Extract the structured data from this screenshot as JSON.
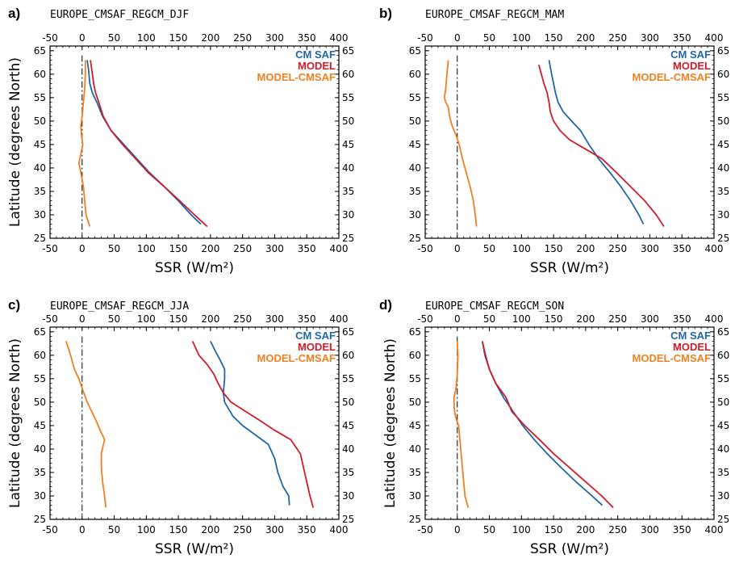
{
  "chart_data": [
    {
      "type": "line",
      "panel_label": "a)",
      "title": "EUROPE_CMSAF_REGCM_DJF",
      "xlabel": "SSR (W/m²)",
      "ylabel": "Latitude (degrees North)",
      "xlim": [
        -50,
        400
      ],
      "ylim": [
        25,
        66
      ],
      "xticks": [
        -50,
        0,
        50,
        100,
        150,
        200,
        250,
        300,
        350,
        400
      ],
      "yticks": [
        25,
        30,
        35,
        40,
        45,
        50,
        55,
        60,
        65
      ],
      "grid": false,
      "legend_position": "top-right",
      "series": [
        {
          "name": "CM SAF",
          "color": "#1f66a8",
          "x": [
            185,
            170,
            150,
            128,
            105,
            85,
            65,
            45,
            32,
            23,
            16,
            12,
            10,
            8
          ],
          "y": [
            28,
            30,
            33,
            36,
            39,
            42,
            45,
            48,
            51,
            54,
            56,
            58,
            61,
            63
          ]
        },
        {
          "name": "MODEL",
          "color": "#d01c2a",
          "x": [
            195,
            175,
            152,
            128,
            103,
            83,
            63,
            45,
            33,
            26,
            21,
            18,
            15,
            13
          ],
          "y": [
            27.5,
            30,
            33,
            36,
            39,
            42,
            45,
            48,
            51,
            54,
            56,
            58,
            61,
            63
          ]
        },
        {
          "name": "MODEL-CMSAF",
          "color": "#f07f20",
          "x": [
            12,
            6,
            4,
            2,
            -2,
            -5,
            -2,
            1,
            -1,
            -2,
            0,
            2,
            4,
            5,
            5
          ],
          "y": [
            27.5,
            30,
            33,
            36,
            39,
            41,
            43,
            45,
            47,
            49,
            51,
            54,
            57,
            60,
            63
          ]
        }
      ],
      "reference_line": {
        "x": 0,
        "style": "dash-dot"
      }
    },
    {
      "type": "line",
      "panel_label": "b)",
      "title": "EUROPE_CMSAF_REGCM_MAM",
      "xlabel": "SSR (W/m²)",
      "ylabel": "",
      "xlim": [
        -50,
        400
      ],
      "ylim": [
        25,
        66
      ],
      "xticks": [
        -50,
        0,
        50,
        100,
        150,
        200,
        250,
        300,
        350,
        400
      ],
      "yticks": [
        25,
        30,
        35,
        40,
        45,
        50,
        55,
        60,
        65
      ],
      "grid": false,
      "legend_position": "top-right",
      "series": [
        {
          "name": "CM SAF",
          "color": "#1f66a8",
          "x": [
            290,
            283,
            270,
            255,
            238,
            220,
            205,
            192,
            178,
            165,
            157,
            153,
            150,
            147,
            143
          ],
          "y": [
            28,
            30,
            33,
            36,
            39,
            42,
            45,
            48,
            50,
            52,
            54,
            56,
            58,
            60,
            63
          ]
        },
        {
          "name": "MODEL",
          "color": "#d01c2a",
          "x": [
            322,
            310,
            292,
            270,
            248,
            225,
            200,
            175,
            160,
            150,
            145,
            143,
            140,
            135,
            127
          ],
          "y": [
            27.5,
            30,
            33,
            36,
            39,
            42,
            44,
            46,
            48,
            50,
            52,
            54,
            56,
            58,
            62
          ]
        },
        {
          "name": "MODEL-CMSAF",
          "color": "#f07f20",
          "x": [
            30,
            28,
            25,
            20,
            14,
            8,
            3,
            -2,
            -8,
            -12,
            -14,
            -18,
            -20,
            -18,
            -16,
            -14
          ],
          "y": [
            27.5,
            30,
            33,
            36,
            39,
            42,
            45,
            47,
            49,
            51,
            53,
            54,
            55,
            57,
            60,
            63
          ]
        }
      ],
      "reference_line": {
        "x": 0,
        "style": "dash-dot"
      }
    },
    {
      "type": "line",
      "panel_label": "c)",
      "title": "EUROPE_CMSAF_REGCM_JJA",
      "xlabel": "SSR (W/m²)",
      "ylabel": "Latitude (degrees North)",
      "xlim": [
        -50,
        400
      ],
      "ylim": [
        25,
        66
      ],
      "xticks": [
        -50,
        0,
        50,
        100,
        150,
        200,
        250,
        300,
        350,
        400
      ],
      "yticks": [
        25,
        30,
        35,
        40,
        45,
        50,
        55,
        60,
        65
      ],
      "grid": false,
      "legend_position": "top-right",
      "series": [
        {
          "name": "CM SAF",
          "color": "#1f66a8",
          "x": [
            323,
            322,
            313,
            305,
            300,
            290,
            270,
            250,
            235,
            222,
            220,
            222,
            222,
            215,
            207,
            200
          ],
          "y": [
            28,
            30,
            32,
            35,
            38,
            41,
            43,
            45,
            47,
            50,
            52,
            55,
            57,
            59,
            61,
            63
          ]
        },
        {
          "name": "MODEL",
          "color": "#d01c2a",
          "x": [
            360,
            355,
            350,
            345,
            340,
            325,
            300,
            278,
            255,
            232,
            220,
            212,
            205,
            195,
            182,
            172
          ],
          "y": [
            27.5,
            30,
            33,
            36,
            39,
            42,
            44,
            46,
            48,
            50,
            52,
            54,
            56,
            58,
            60,
            63
          ]
        },
        {
          "name": "MODEL-CMSAF",
          "color": "#f07f20",
          "x": [
            37,
            35,
            32,
            30,
            30,
            35,
            28,
            22,
            15,
            8,
            0,
            -5,
            -12,
            -18,
            -25
          ],
          "y": [
            27.5,
            30,
            33,
            36,
            39,
            42,
            44,
            46,
            48,
            50,
            53,
            55,
            57,
            60,
            63
          ]
        }
      ],
      "reference_line": {
        "x": 0,
        "style": "dash-dot"
      }
    },
    {
      "type": "line",
      "panel_label": "d)",
      "title": "EUROPE_CMSAF_REGCM_SON",
      "xlabel": "SSR (W/m²)",
      "ylabel": "Latitude (degrees North)",
      "xlim": [
        -50,
        400
      ],
      "ylim": [
        25,
        66
      ],
      "xticks": [
        -50,
        0,
        50,
        100,
        150,
        200,
        250,
        300,
        350,
        400
      ],
      "yticks": [
        25,
        30,
        35,
        40,
        45,
        50,
        55,
        60,
        65
      ],
      "grid": false,
      "legend_position": "top-right",
      "series": [
        {
          "name": "CM SAF",
          "color": "#1f66a8",
          "x": [
            226,
            210,
            185,
            162,
            140,
            120,
            102,
            87,
            72,
            60,
            50,
            43,
            39
          ],
          "y": [
            28,
            30,
            33,
            36,
            39,
            42,
            45,
            48,
            51,
            54,
            57,
            60,
            63
          ]
        },
        {
          "name": "MODEL",
          "color": "#d01c2a",
          "x": [
            243,
            225,
            200,
            175,
            150,
            128,
            105,
            85,
            76,
            60,
            50,
            44,
            39
          ],
          "y": [
            27.5,
            30,
            33,
            36,
            39,
            42,
            45,
            48,
            51,
            54,
            57,
            60,
            63
          ]
        },
        {
          "name": "MODEL-CMSAF",
          "color": "#f07f20",
          "x": [
            17,
            12,
            10,
            8,
            6,
            4,
            2,
            -3,
            -5,
            -5,
            -2,
            0,
            1,
            0
          ],
          "y": [
            27.5,
            30,
            33,
            36,
            39,
            42,
            45,
            47,
            49,
            51,
            53,
            56,
            60,
            63
          ]
        }
      ],
      "reference_line": {
        "x": 0,
        "style": "dash-dot"
      }
    }
  ]
}
